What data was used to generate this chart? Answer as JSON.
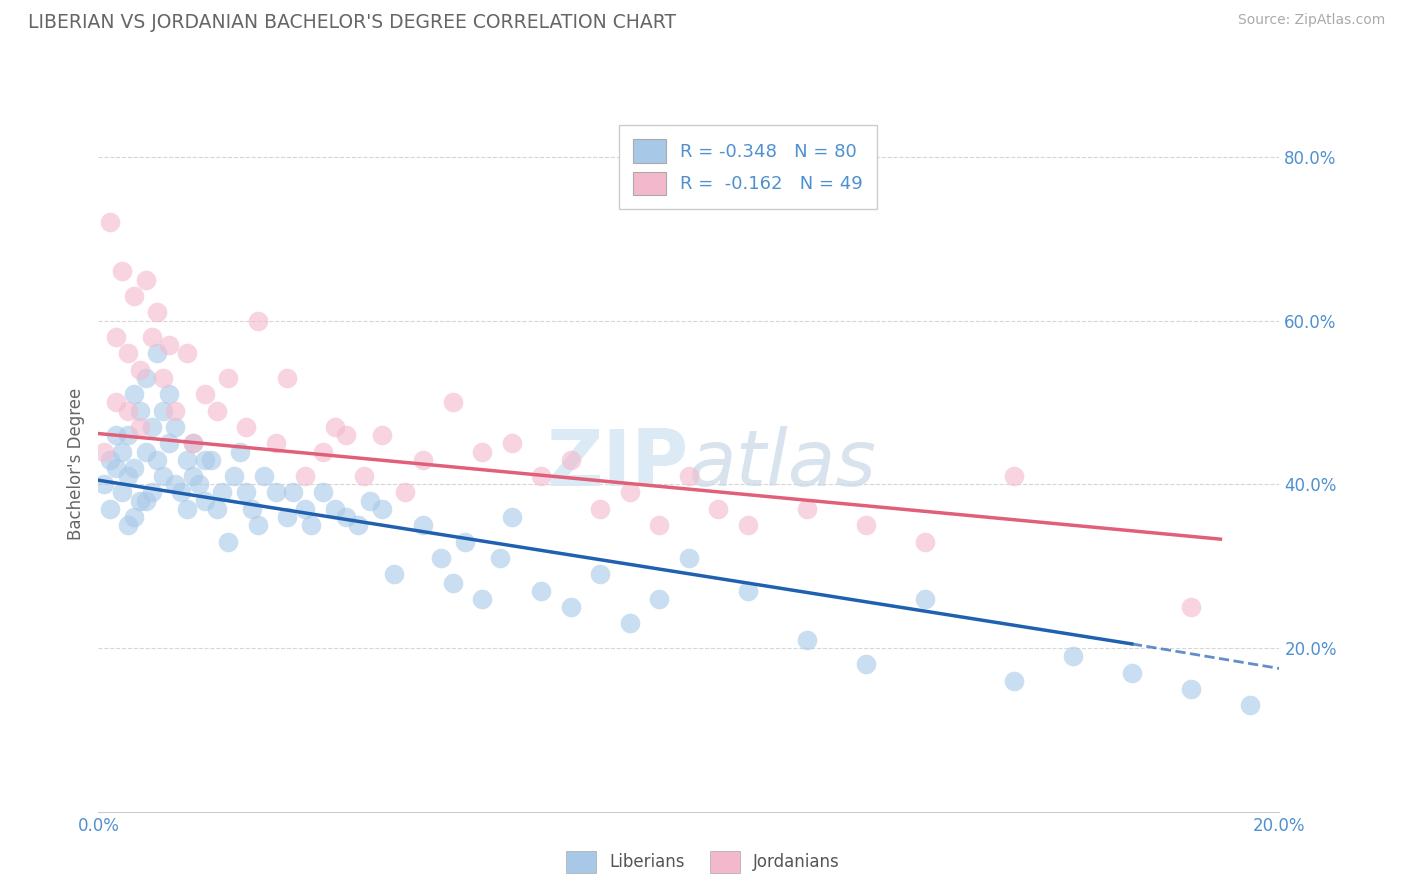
{
  "title": "LIBERIAN VS JORDANIAN BACHELOR'S DEGREE CORRELATION CHART",
  "source": "Source: ZipAtlas.com",
  "ylabel": "Bachelor's Degree",
  "xlim": [
    0.0,
    0.2
  ],
  "ylim": [
    0.0,
    0.85
  ],
  "liberian_color": "#a8c8e8",
  "jordanian_color": "#f4b8cc",
  "liberian_line_color": "#2060b0",
  "jordanian_line_color": "#e0607a",
  "legend_line1": "R = -0.348   N = 80",
  "legend_line2": "R =  -0.162   N = 49",
  "watermark_zip": "ZIP",
  "watermark_atlas": "atlas",
  "tick_label_color": "#5090d0",
  "title_color": "#666666",
  "source_color": "#aaaaaa",
  "ylabel_color": "#666666",
  "liberian_x": [
    0.001,
    0.002,
    0.002,
    0.003,
    0.003,
    0.004,
    0.004,
    0.005,
    0.005,
    0.005,
    0.006,
    0.006,
    0.006,
    0.007,
    0.007,
    0.008,
    0.008,
    0.008,
    0.009,
    0.009,
    0.01,
    0.01,
    0.011,
    0.011,
    0.012,
    0.012,
    0.013,
    0.013,
    0.014,
    0.015,
    0.015,
    0.016,
    0.016,
    0.017,
    0.018,
    0.018,
    0.019,
    0.02,
    0.021,
    0.022,
    0.023,
    0.024,
    0.025,
    0.026,
    0.027,
    0.028,
    0.03,
    0.032,
    0.033,
    0.035,
    0.036,
    0.038,
    0.04,
    0.042,
    0.044,
    0.046,
    0.048,
    0.05,
    0.055,
    0.058,
    0.06,
    0.062,
    0.065,
    0.068,
    0.07,
    0.075,
    0.08,
    0.085,
    0.09,
    0.095,
    0.1,
    0.11,
    0.12,
    0.13,
    0.14,
    0.155,
    0.165,
    0.175,
    0.185,
    0.195
  ],
  "liberian_y": [
    0.4,
    0.43,
    0.37,
    0.42,
    0.46,
    0.44,
    0.39,
    0.46,
    0.41,
    0.35,
    0.51,
    0.42,
    0.36,
    0.49,
    0.38,
    0.53,
    0.44,
    0.38,
    0.47,
    0.39,
    0.56,
    0.43,
    0.49,
    0.41,
    0.51,
    0.45,
    0.47,
    0.4,
    0.39,
    0.43,
    0.37,
    0.45,
    0.41,
    0.4,
    0.43,
    0.38,
    0.43,
    0.37,
    0.39,
    0.33,
    0.41,
    0.44,
    0.39,
    0.37,
    0.35,
    0.41,
    0.39,
    0.36,
    0.39,
    0.37,
    0.35,
    0.39,
    0.37,
    0.36,
    0.35,
    0.38,
    0.37,
    0.29,
    0.35,
    0.31,
    0.28,
    0.33,
    0.26,
    0.31,
    0.36,
    0.27,
    0.25,
    0.29,
    0.23,
    0.26,
    0.31,
    0.27,
    0.21,
    0.18,
    0.26,
    0.16,
    0.19,
    0.17,
    0.15,
    0.13
  ],
  "jordanian_x": [
    0.001,
    0.002,
    0.003,
    0.003,
    0.004,
    0.005,
    0.005,
    0.006,
    0.007,
    0.007,
    0.008,
    0.009,
    0.01,
    0.011,
    0.012,
    0.013,
    0.015,
    0.016,
    0.018,
    0.02,
    0.022,
    0.025,
    0.027,
    0.03,
    0.032,
    0.035,
    0.038,
    0.04,
    0.042,
    0.045,
    0.048,
    0.052,
    0.055,
    0.06,
    0.065,
    0.07,
    0.075,
    0.08,
    0.085,
    0.09,
    0.095,
    0.1,
    0.105,
    0.11,
    0.12,
    0.13,
    0.14,
    0.155,
    0.185
  ],
  "jordanian_y": [
    0.44,
    0.72,
    0.58,
    0.5,
    0.66,
    0.56,
    0.49,
    0.63,
    0.54,
    0.47,
    0.65,
    0.58,
    0.61,
    0.53,
    0.57,
    0.49,
    0.56,
    0.45,
    0.51,
    0.49,
    0.53,
    0.47,
    0.6,
    0.45,
    0.53,
    0.41,
    0.44,
    0.47,
    0.46,
    0.41,
    0.46,
    0.39,
    0.43,
    0.5,
    0.44,
    0.45,
    0.41,
    0.43,
    0.37,
    0.39,
    0.35,
    0.41,
    0.37,
    0.35,
    0.37,
    0.35,
    0.33,
    0.41,
    0.25
  ],
  "lib_line_x0": 0.0,
  "lib_line_y0": 0.405,
  "lib_line_x1": 0.175,
  "lib_line_y1": 0.205,
  "lib_line_dash_x0": 0.175,
  "lib_line_dash_y0": 0.205,
  "lib_line_dash_x1": 0.2,
  "lib_line_dash_y1": 0.175,
  "jor_line_x0": 0.0,
  "jor_line_y0": 0.462,
  "jor_line_x1": 0.19,
  "jor_line_y1": 0.333
}
